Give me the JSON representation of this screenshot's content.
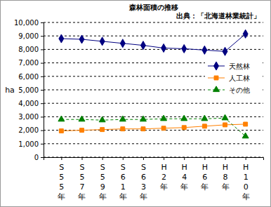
{
  "chart_data": {
    "type": "line",
    "title": "森林面積の推移",
    "subtitle": "出典：「北海道林業統計」",
    "y_label": "ha",
    "categories": [
      "S55年",
      "S57年",
      "S59年",
      "S61年",
      "S63年",
      "H2年",
      "H4年",
      "H6年",
      "H8年",
      "H10年"
    ],
    "series": [
      {
        "name": "天然林",
        "color": "#000080",
        "marker": "diamond",
        "line_style": "solid",
        "values": [
          8800,
          8750,
          8600,
          8450,
          8300,
          8100,
          8050,
          7950,
          7850,
          9150
        ]
      },
      {
        "name": "人工林",
        "color": "#ff8000",
        "marker": "square",
        "line_style": "solid",
        "values": [
          1950,
          2000,
          2050,
          2100,
          2100,
          2150,
          2200,
          2300,
          2400,
          2450
        ]
      },
      {
        "name": "その他",
        "color": "#008000",
        "marker": "triangle",
        "line_style": "dashed",
        "values": [
          2800,
          2800,
          2750,
          2800,
          2800,
          2850,
          2850,
          2850,
          2900,
          1550
        ]
      }
    ],
    "ylim": [
      0,
      10000
    ],
    "yticks": [
      0,
      {
        "value": 1000,
        "label": "1,000"
      },
      {
        "value": 2000,
        "label": "2,000"
      },
      {
        "value": 3000,
        "label": "3,000"
      },
      {
        "value": 4000,
        "label": "4,000"
      },
      {
        "value": 5000,
        "label": "5,000"
      },
      {
        "value": 6000,
        "label": "6,000"
      },
      {
        "value": 7000,
        "label": "7,000"
      },
      {
        "value": 8000,
        "label": "8,000"
      },
      {
        "value": 9000,
        "label": "9,000"
      },
      {
        "value": 10000,
        "label": "10,000"
      }
    ],
    "grid": true,
    "legend": "right"
  }
}
